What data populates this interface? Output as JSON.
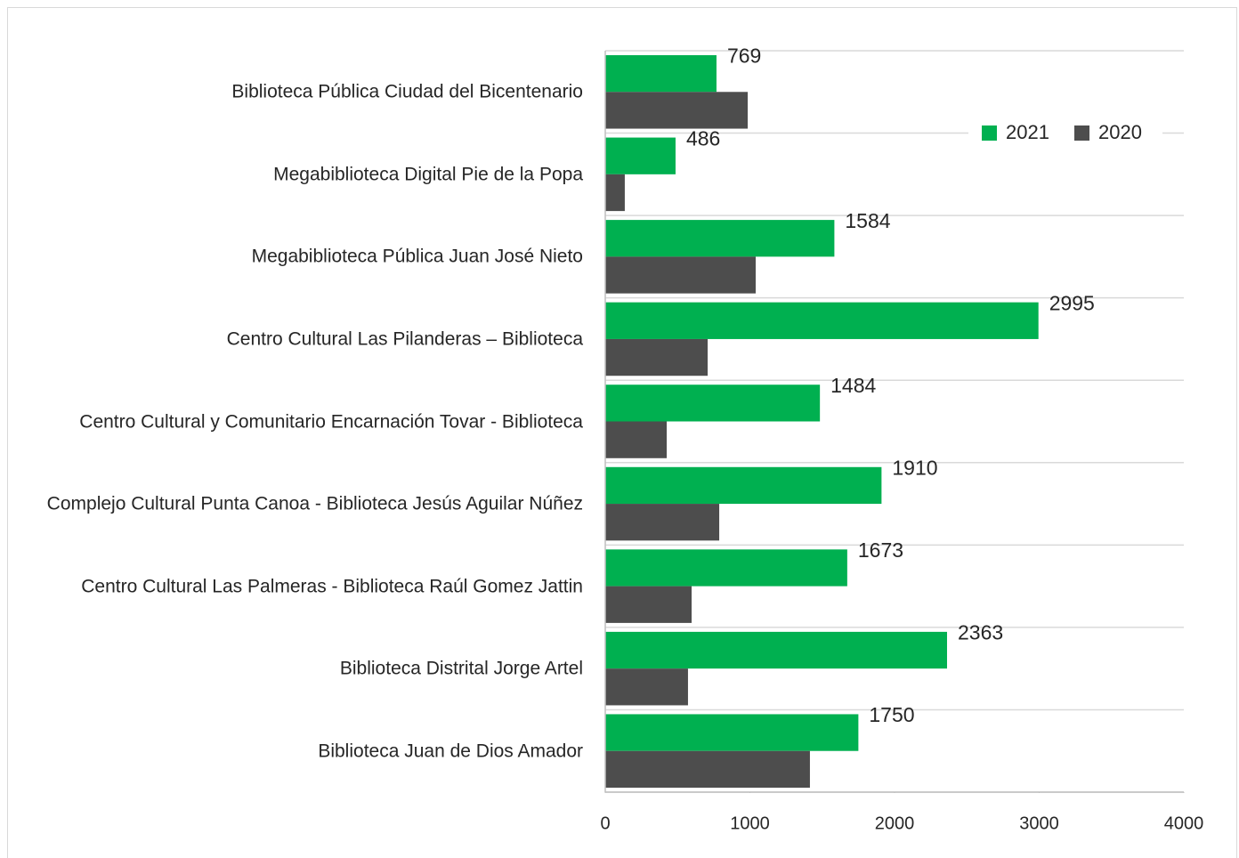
{
  "chart_data": {
    "type": "hbar",
    "categories": [
      "Biblioteca Pública Ciudad del Bicentenario",
      "Megabiblioteca Digital Pie de la Popa",
      "Megabiblioteca Pública Juan José Nieto",
      "Centro Cultural Las Pilanderas – Biblioteca",
      "Centro Cultural y Comunitario Encarnación Tovar - Biblioteca",
      "Complejo Cultural Punta Canoa - Biblioteca Jesús Aguilar Núñez",
      "Centro Cultural Las Palmeras - Biblioteca Raúl Gomez Jattin",
      "Biblioteca Distrital Jorge Artel",
      "Biblioteca Juan de Dios Amador"
    ],
    "series": [
      {
        "name": "2021",
        "color": "#00b050",
        "values": [
          769,
          486,
          1584,
          2995,
          1484,
          1910,
          1673,
          2363,
          1750
        ],
        "labels": true
      },
      {
        "name": "2020",
        "color": "#4d4d4d",
        "values": [
          985,
          135,
          1040,
          708,
          425,
          788,
          597,
          572,
          1415
        ],
        "labels": false
      }
    ],
    "xlim": [
      0,
      4000
    ],
    "xticks": [
      0,
      1000,
      2000,
      3000,
      4000
    ],
    "legend": "top-right"
  }
}
